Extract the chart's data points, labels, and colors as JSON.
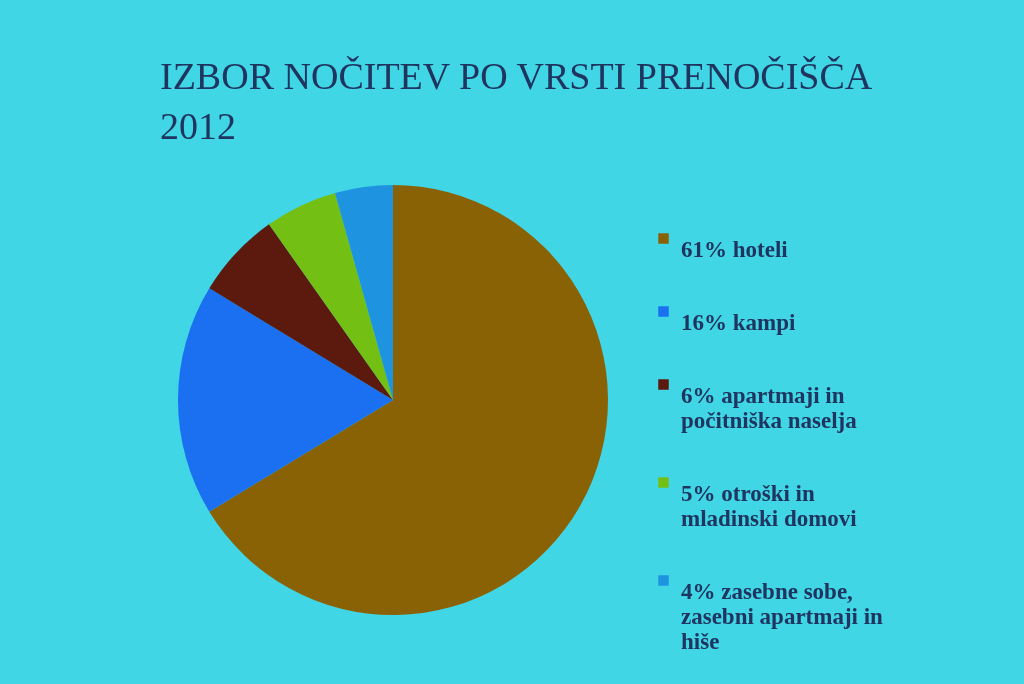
{
  "chart_data": {
    "type": "pie",
    "title": "IZBOR NOČITEV PO VRSTI PRENOČIŠČA 2012",
    "categories": [
      "61% hoteli",
      "16% kampi",
      "6% apartmaji in počitniška naselja",
      "5% otroški in mladinski domovi",
      "4% zasebne sobe, zasebni apartmaji in hiše"
    ],
    "values": [
      61,
      16,
      6,
      5,
      4
    ],
    "colors": [
      "#8a6206",
      "#1a70f0",
      "#5c1a0e",
      "#74bf14",
      "#1e94e0"
    ],
    "legend": "right"
  }
}
